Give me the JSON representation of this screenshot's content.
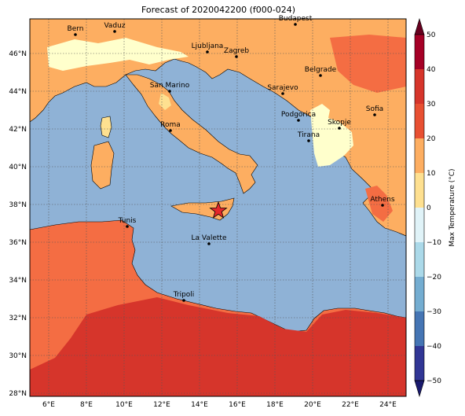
{
  "title": "Forecast of 2020042200 (f000-024)",
  "lat_labels": [
    "46°N",
    "44°N",
    "42°N",
    "40°N",
    "38°N",
    "36°N",
    "34°N",
    "32°N",
    "30°N",
    "28°N"
  ],
  "lon_labels": [
    "6°E",
    "8°E",
    "10°E",
    "12°E",
    "14°E",
    "16°E",
    "18°E",
    "20°E",
    "22°E",
    "24°E"
  ],
  "colorbar": {
    "label": "Max Temperature (°C)",
    "ticks": [
      "50",
      "40",
      "30",
      "20",
      "10",
      "0",
      "−10",
      "−20",
      "−30",
      "−40",
      "−50"
    ],
    "colors": [
      "#67001f",
      "#b2182b",
      "#d6352b",
      "#f46d43",
      "#fdae61",
      "#fee090",
      "#ffffbf",
      "#e0f3f8",
      "#abd9e9",
      "#74add1",
      "#4575b4",
      "#313695",
      "#1a1a6e"
    ]
  },
  "colors": {
    "sea": "#8fb2d6",
    "land_warm": "#fdae61",
    "land_hot": "#f46d43",
    "land_hottest": "#d6352b",
    "land_mild": "#fee090",
    "land_pale": "#ffffcc",
    "marker": "#e4262a"
  },
  "cities": [
    {
      "name": "Bern"
    },
    {
      "name": "Vaduz"
    },
    {
      "name": "Budapest"
    },
    {
      "name": "Ljubljana"
    },
    {
      "name": "Zagreb"
    },
    {
      "name": "Belgrade"
    },
    {
      "name": "San Marino"
    },
    {
      "name": "Sarajevo"
    },
    {
      "name": "Sofia"
    },
    {
      "name": "Roma"
    },
    {
      "name": "Podgorica"
    },
    {
      "name": "Skopje"
    },
    {
      "name": "Tirana"
    },
    {
      "name": "Athens"
    },
    {
      "name": "Tunis"
    },
    {
      "name": "La Valette"
    },
    {
      "name": "Tripoli"
    }
  ]
}
